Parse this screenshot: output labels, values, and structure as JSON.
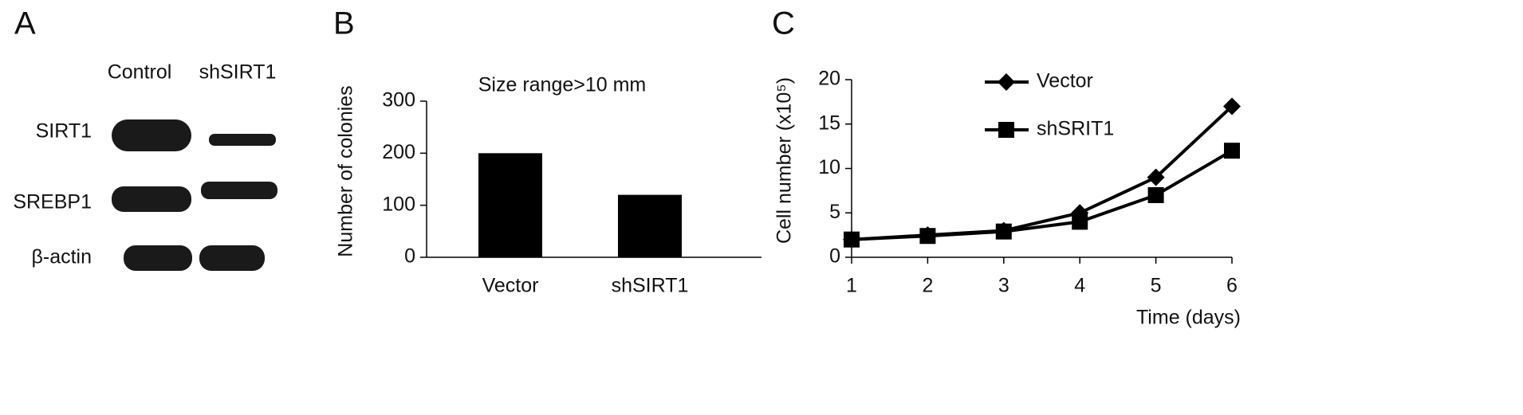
{
  "blot": {
    "panel": "A",
    "columns": [
      "Control",
      "shSIRT1"
    ],
    "rows": [
      "SIRT1",
      "SREBP1",
      "β-actin"
    ]
  },
  "chart_data": [
    {
      "type": "bar",
      "panel": "B",
      "title": "Size range>10 mm",
      "y_label": "Number of colonies",
      "categories": [
        "Vector",
        "shSIRT1"
      ],
      "values": [
        200,
        120
      ],
      "color": "#000000",
      "ylim": [
        0,
        300
      ],
      "yticks": [
        0,
        100,
        200,
        300
      ]
    },
    {
      "type": "line",
      "panel": "C",
      "y_label": "Cell number (x10⁵)",
      "x_label": "Time (days)",
      "x": [
        1,
        2,
        3,
        4,
        5,
        6
      ],
      "series": [
        {
          "name": "Vector",
          "color": "#000000",
          "marker": "diamond",
          "values": [
            2,
            2.5,
            3,
            5,
            9,
            17
          ]
        },
        {
          "name": "shSRIT1",
          "color": "#000000",
          "marker": "square",
          "values": [
            2,
            2.4,
            2.9,
            4,
            7,
            12
          ]
        }
      ],
      "xlim": [
        1,
        6
      ],
      "xticks": [
        1,
        2,
        3,
        4,
        5,
        6
      ],
      "ylim": [
        0,
        20
      ],
      "yticks": [
        0,
        5,
        10,
        15,
        20
      ]
    }
  ]
}
